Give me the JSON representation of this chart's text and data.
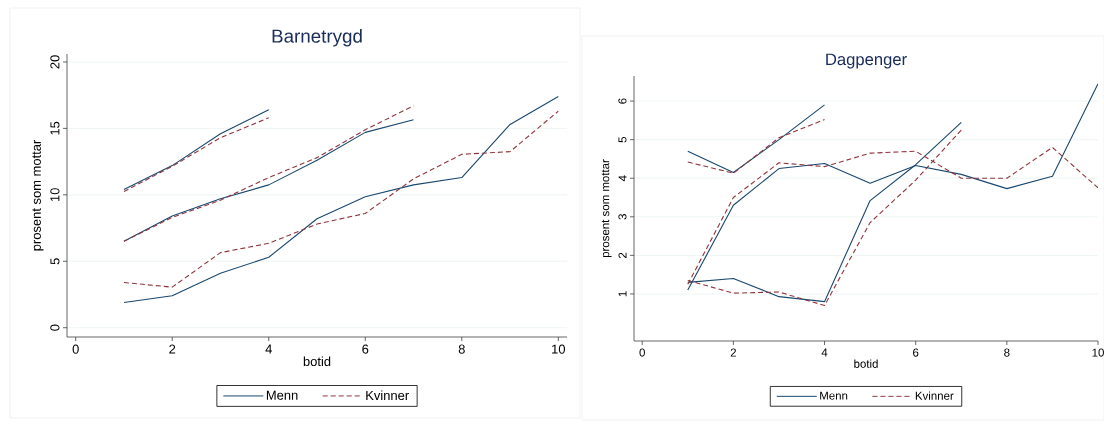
{
  "chart_data": [
    {
      "type": "line",
      "title": "Barnetrygd",
      "xlabel": "botid",
      "ylabel": "prosent som mottar",
      "xlim": [
        -0.18,
        10.18
      ],
      "ylim": [
        -0.7,
        20.6
      ],
      "xticks": [
        0,
        2,
        4,
        6,
        8,
        10
      ],
      "yticks": [
        0,
        5,
        10,
        15,
        20
      ],
      "grid": "y",
      "legend": "bottom",
      "series": [
        {
          "name": "Menn",
          "color": "#1a476f",
          "line_style": "solid",
          "x": [
            1,
            2,
            3,
            4
          ],
          "values": [
            10.4,
            12.2,
            14.6,
            16.4
          ]
        },
        {
          "name": "Kvinner",
          "color": "#90353b",
          "line_style": "dashed",
          "x": [
            1,
            2,
            3,
            4
          ],
          "values": [
            10.25,
            12.15,
            14.3,
            15.8
          ]
        },
        {
          "color": "#1a476f",
          "line_style": "solid",
          "x": [
            1,
            2,
            3,
            4,
            5,
            6,
            7
          ],
          "values": [
            6.5,
            8.4,
            9.7,
            10.75,
            12.6,
            14.7,
            15.65
          ]
        },
        {
          "color": "#90353b",
          "line_style": "dashed",
          "x": [
            1,
            2,
            3,
            4,
            5,
            6,
            7
          ],
          "values": [
            6.5,
            8.3,
            9.6,
            11.3,
            12.8,
            14.9,
            16.7
          ]
        },
        {
          "color": "#1a476f",
          "line_style": "solid",
          "x": [
            1,
            2,
            3,
            4,
            5,
            6,
            7,
            8,
            9,
            10
          ],
          "values": [
            1.9,
            2.4,
            4.1,
            5.3,
            8.2,
            9.85,
            10.75,
            11.3,
            15.3,
            17.4
          ]
        },
        {
          "color": "#90353b",
          "line_style": "dashed",
          "x": [
            1,
            2,
            3,
            4,
            5,
            6,
            7,
            8,
            9,
            10
          ],
          "values": [
            3.4,
            3.05,
            5.65,
            6.35,
            7.8,
            8.6,
            11.2,
            13.05,
            13.25,
            16.3
          ]
        }
      ]
    },
    {
      "type": "line",
      "title": "Dagpenger",
      "xlabel": "botid",
      "ylabel": "prosent som mottar",
      "xlim": [
        -0.18,
        10
      ],
      "ylim": [
        -0.22,
        6.65
      ],
      "xticks": [
        0,
        2,
        4,
        6,
        8,
        10
      ],
      "yticks": [
        1,
        2,
        3,
        4,
        5,
        6
      ],
      "grid": "y",
      "legend": "bottom",
      "series": [
        {
          "name": "Menn",
          "color": "#1a476f",
          "line_style": "solid",
          "x": [
            1,
            2,
            3,
            4
          ],
          "values": [
            4.7,
            4.15,
            5.0,
            5.9
          ]
        },
        {
          "name": "Kvinner",
          "color": "#90353b",
          "line_style": "dashed",
          "x": [
            1,
            2,
            3,
            4
          ],
          "values": [
            4.42,
            4.13,
            5.05,
            5.52
          ]
        },
        {
          "color": "#1a476f",
          "line_style": "solid",
          "x": [
            1,
            2,
            3,
            4,
            5,
            6,
            7
          ],
          "values": [
            1.3,
            1.4,
            0.93,
            0.8,
            3.42,
            4.35,
            5.45
          ]
        },
        {
          "color": "#90353b",
          "line_style": "dashed",
          "x": [
            1,
            2,
            3,
            4,
            5,
            6,
            7
          ],
          "values": [
            1.35,
            1.02,
            1.05,
            0.7,
            2.85,
            3.95,
            5.25
          ]
        },
        {
          "color": "#1a476f",
          "line_style": "solid",
          "x": [
            1,
            2,
            3,
            4,
            5,
            6,
            7,
            8,
            9,
            10
          ],
          "values": [
            1.1,
            3.3,
            4.25,
            4.38,
            3.87,
            4.33,
            4.1,
            3.73,
            4.05,
            6.45
          ]
        },
        {
          "color": "#90353b",
          "line_style": "dashed",
          "x": [
            1,
            2,
            3,
            4,
            5,
            6,
            7,
            8,
            9,
            10
          ],
          "values": [
            1.25,
            3.5,
            4.4,
            4.3,
            4.65,
            4.7,
            4.0,
            4.0,
            4.8,
            3.75
          ]
        }
      ]
    }
  ]
}
